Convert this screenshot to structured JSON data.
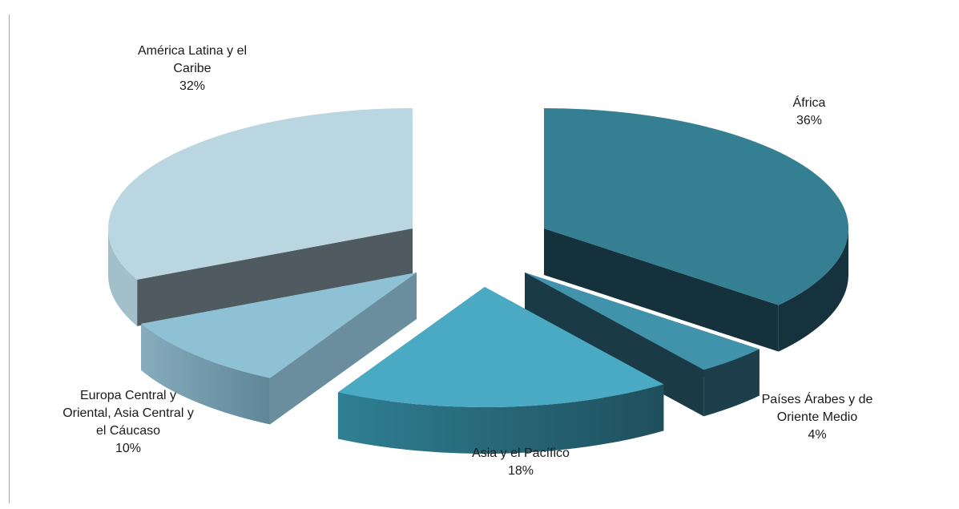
{
  "chart_data": {
    "type": "pie",
    "style": "3d-exploded",
    "title": "",
    "slices": [
      {
        "name": "África",
        "label_lines": [
          "África"
        ],
        "percent_text": "36%",
        "value": 36,
        "color": "#357f92"
      },
      {
        "name": "Países Árabes y de Oriente Medio",
        "label_lines": [
          "Países Árabes y de",
          "Oriente Medio"
        ],
        "percent_text": "4%",
        "value": 4,
        "color": "#4193ab"
      },
      {
        "name": "Asia y el Pacífico",
        "label_lines": [
          "Asia y el Pacífico"
        ],
        "percent_text": "18%",
        "value": 18,
        "color": "#4aa9c3"
      },
      {
        "name": "Europa Central y Oriental, Asia Central y el Cáucaso",
        "label_lines": [
          "Europa Central y",
          "Oriental, Asia Central y",
          "el Cáucaso"
        ],
        "percent_text": "10%",
        "value": 10,
        "color": "#8fc1d4"
      },
      {
        "name": "América Latina y el Caribe",
        "label_lines": [
          "América Latina y el",
          "Caribe"
        ],
        "percent_text": "32%",
        "value": 32,
        "color": "#bad7e1"
      }
    ]
  }
}
